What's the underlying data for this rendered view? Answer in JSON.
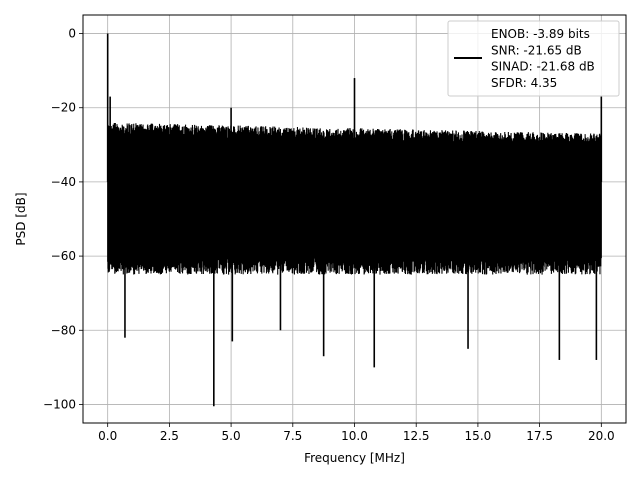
{
  "chart_data": {
    "type": "line",
    "title": "",
    "xlabel": "Frequency [MHz]",
    "ylabel": "PSD [dB]",
    "xlim": [
      -1.0,
      21.0
    ],
    "ylim": [
      -105,
      5
    ],
    "xticks": [
      0.0,
      2.5,
      5.0,
      7.5,
      10.0,
      12.5,
      15.0,
      17.5,
      20.0
    ],
    "xtick_labels": [
      "0.0",
      "2.5",
      "5.0",
      "7.5",
      "10.0",
      "12.5",
      "15.0",
      "17.5",
      "20.0"
    ],
    "yticks": [
      0,
      -20,
      -40,
      -60,
      -80,
      -100
    ],
    "ytick_labels": [
      "0",
      "−20",
      "−40",
      "−60",
      "−80",
      "−100"
    ],
    "grid": true,
    "line_color": "#000000",
    "legend": {
      "position": "top-right",
      "entries": [
        "ENOB: -3.89 bits",
        "SNR: -21.65 dB",
        "SINAD: -21.68 dB",
        "SFDR: 4.35"
      ]
    },
    "series": [
      {
        "noise_band": {
          "x_range": [
            0.0,
            20.0
          ],
          "upper_envelope_db": [
            -24,
            -27
          ],
          "dense_lower_db": -60,
          "occasional_dips_db": [
            -65,
            -80
          ]
        },
        "peaks": [
          {
            "x": 0.0,
            "y": 0
          },
          {
            "x": 0.1,
            "y": -17
          },
          {
            "x": 5.0,
            "y": -20
          },
          {
            "x": 10.0,
            "y": -12
          },
          {
            "x": 20.0,
            "y": -17
          }
        ],
        "dips": [
          {
            "x": 0.1,
            "y": -58
          },
          {
            "x": 0.7,
            "y": -82
          },
          {
            "x": 4.3,
            "y": -100.5
          },
          {
            "x": 5.05,
            "y": -83
          },
          {
            "x": 7.0,
            "y": -80
          },
          {
            "x": 8.75,
            "y": -87
          },
          {
            "x": 10.8,
            "y": -90
          },
          {
            "x": 14.6,
            "y": -85
          },
          {
            "x": 18.3,
            "y": -88
          },
          {
            "x": 19.8,
            "y": -88
          }
        ]
      }
    ]
  }
}
